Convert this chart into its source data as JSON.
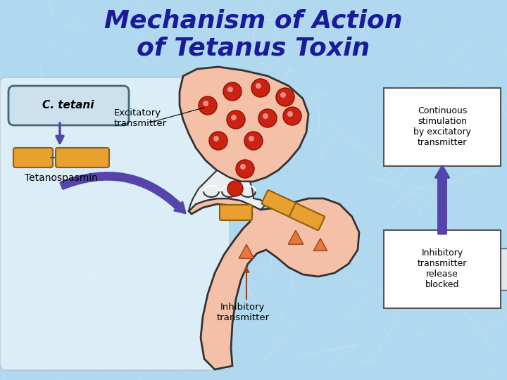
{
  "title_line1": "Mechanism of Action",
  "title_line2": "of Tetanus Toxin",
  "title_color": "#1a1a9a",
  "title_fontsize": 26,
  "bg_color": "#b0d8ee",
  "neuron_color": "#f5c0a8",
  "neuron_edge": "#333333",
  "label_c_tetani": "C. tetani",
  "label_tetanospasmin": "Tetanospasmin",
  "label_excitatory": "Excitatory\ntransmitter",
  "label_inhibitory_trans": "Inhibitory\ntransmitter",
  "label_continuous": "Continuous\nstimulation\nby excitatory\ntransmitter",
  "label_inhibitory_blocked": "Inhibitory\ntransmitter\nrelease\nblocked",
  "arrow_color": "#5544aa",
  "box_color": "#c8dce8",
  "orange_color": "#e8a030",
  "red_dot_color": "#cc2211",
  "triangle_color": "#e87838",
  "white_gap": "#e8eef2"
}
